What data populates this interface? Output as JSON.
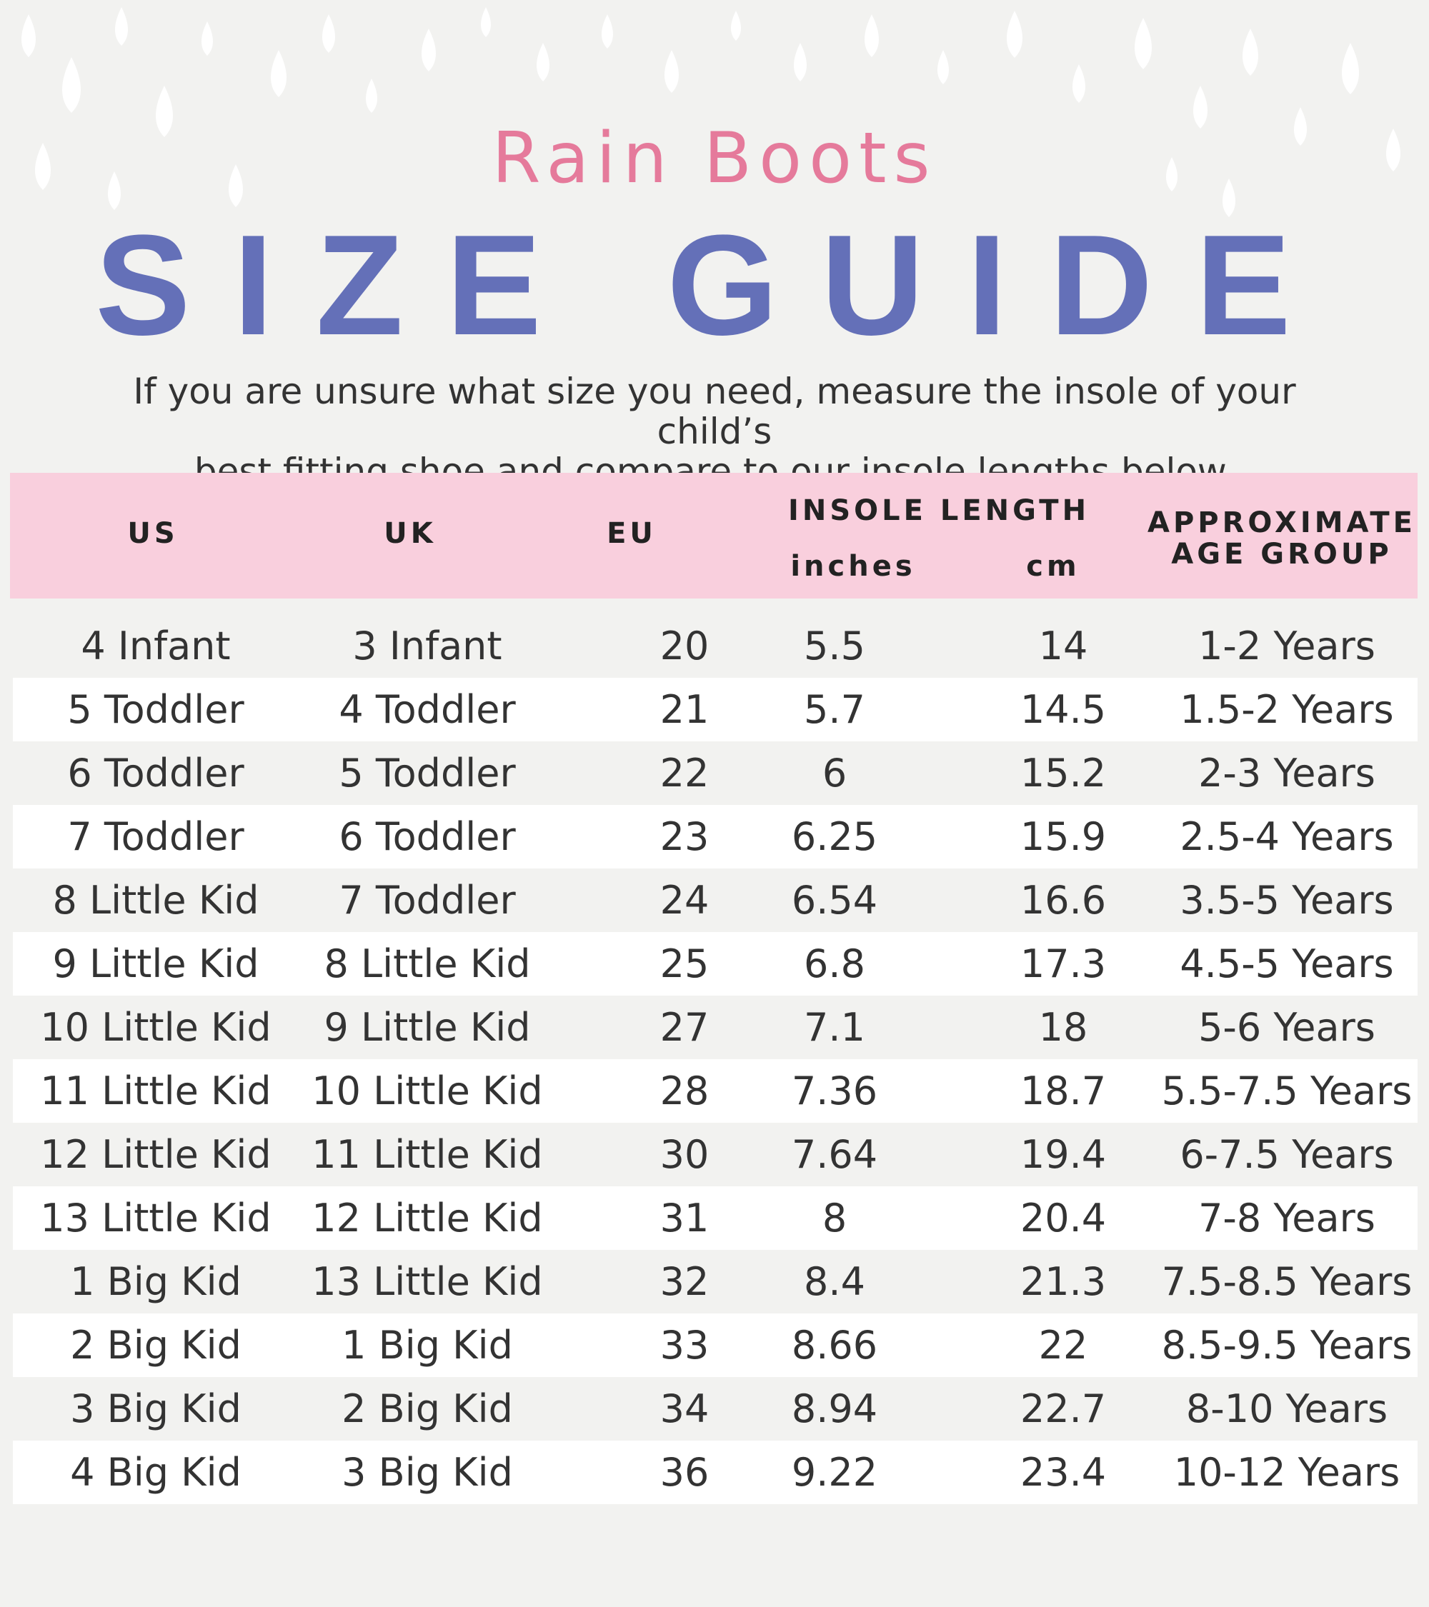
{
  "title": {
    "small": "Rain Boots",
    "big": "SIZE GUIDE"
  },
  "intro": {
    "line1": "If you are unsure what size you need, measure the insole of your child’s",
    "line2": "best fitting shoe and compare to our insole lengths below."
  },
  "colors": {
    "pink_title": "#e57a9b",
    "blue_title": "#6470b8",
    "header_bg": "#f9cfdd",
    "row_alt": "#ffffff",
    "page_bg": "#f2f2f0"
  },
  "headers": {
    "us": "US",
    "uk": "UK",
    "eu": "EU",
    "insole": "INSOLE LENGTH",
    "inches": "inches",
    "cm": "cm",
    "age1": "APPROXIMATE",
    "age2": "AGE GROUP"
  },
  "rows": [
    [
      "4 Infant",
      "3 Infant",
      "20",
      "5.5",
      "14",
      "1-2 Years"
    ],
    [
      "5 Toddler",
      "4 Toddler",
      "21",
      "5.7",
      "14.5",
      "1.5-2 Years"
    ],
    [
      "6 Toddler",
      "5 Toddler",
      "22",
      "6",
      "15.2",
      "2-3 Years"
    ],
    [
      "7 Toddler",
      "6 Toddler",
      "23",
      "6.25",
      "15.9",
      "2.5-4 Years"
    ],
    [
      "8 Little Kid",
      "7 Toddler",
      "24",
      "6.54",
      "16.6",
      "3.5-5 Years"
    ],
    [
      "9 Little Kid",
      "8 Little Kid",
      "25",
      "6.8",
      "17.3",
      "4.5-5 Years"
    ],
    [
      "10 Little Kid",
      "9 Little Kid",
      "27",
      "7.1",
      "18",
      "5-6 Years"
    ],
    [
      "11 Little Kid",
      "10 Little Kid",
      "28",
      "7.36",
      "18.7",
      "5.5-7.5 Years"
    ],
    [
      "12 Little Kid",
      "11 Little Kid",
      "30",
      "7.64",
      "19.4",
      "6-7.5 Years"
    ],
    [
      "13 Little Kid",
      "12 Little Kid",
      "31",
      "8",
      "20.4",
      "7-8 Years"
    ],
    [
      "1 Big Kid",
      "13 Little Kid",
      "32",
      "8.4",
      "21.3",
      "7.5-8.5 Years"
    ],
    [
      "2 Big Kid",
      "1 Big Kid",
      "33",
      "8.66",
      "22",
      "8.5-9.5 Years"
    ],
    [
      "3 Big Kid",
      "2 Big Kid",
      "34",
      "8.94",
      "22.7",
      "8-10 Years"
    ],
    [
      "4 Big Kid",
      "3 Big Kid",
      "36",
      "9.22",
      "23.4",
      "10-12 Years"
    ]
  ]
}
